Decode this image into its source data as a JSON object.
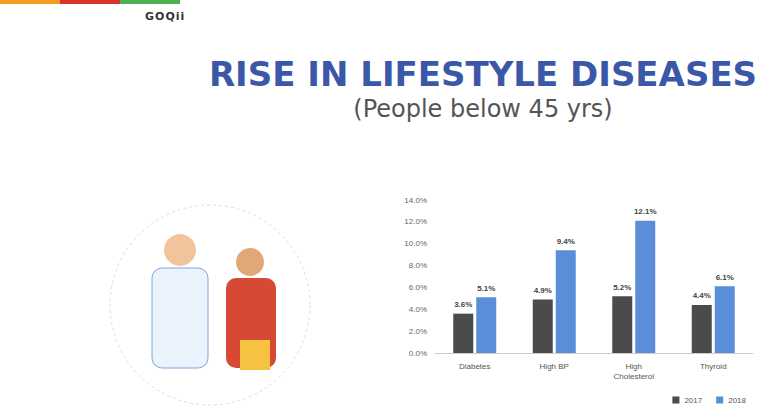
{
  "brand": "GOQii",
  "chart_data": {
    "type": "bar",
    "title": "RISE IN LIFESTYLE DISEASES",
    "subtitle": "(People below 45 yrs)",
    "categories": [
      "Diabetes",
      "High BP",
      "High Cholesterol",
      "Thyroid"
    ],
    "series": [
      {
        "name": "2017",
        "color": "#4b4b4d",
        "values": [
          3.6,
          4.9,
          5.2,
          4.4
        ],
        "value_labels": [
          "3.6%",
          "4.9%",
          "5.2%",
          "4.4%"
        ]
      },
      {
        "name": "2018",
        "color": "#5b8ed8",
        "values": [
          5.1,
          9.4,
          12.1,
          6.1
        ],
        "value_labels": [
          "5.1%",
          "9.4%",
          "12.1%",
          "6.1%"
        ]
      }
    ],
    "ylim": [
      0,
      14
    ],
    "yticks": [
      {
        "value": 0,
        "label": "0.0%"
      },
      {
        "value": 2,
        "label": "2.0%"
      },
      {
        "value": 4,
        "label": "4.0%"
      },
      {
        "value": 6,
        "label": "6.0%"
      },
      {
        "value": 8,
        "label": "8.0%"
      },
      {
        "value": 10,
        "label": "10.0%"
      },
      {
        "value": 12,
        "label": "12.0%"
      },
      {
        "value": 14,
        "label": "14.0%"
      }
    ],
    "grid": false,
    "data_labels": true,
    "legend": "bottom-right"
  }
}
